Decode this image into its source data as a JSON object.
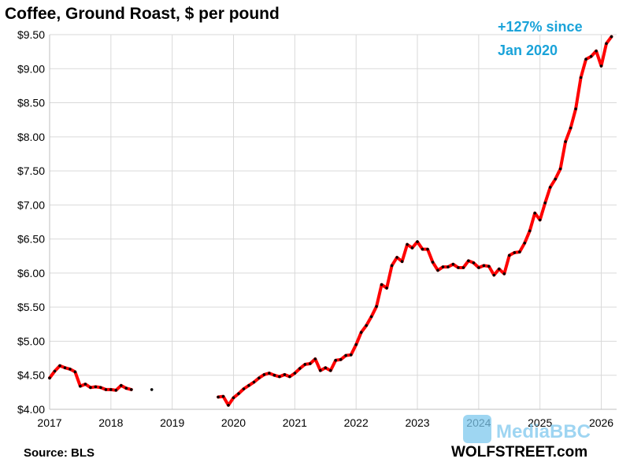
{
  "chart_data": {
    "type": "line",
    "title": "Coffee, Ground Roast, $ per pound",
    "xlabel": "",
    "ylabel": "",
    "xlim": [
      2017,
      2026.25
    ],
    "ylim": [
      4.0,
      9.5
    ],
    "x_ticks": [
      2017,
      2018,
      2019,
      2020,
      2021,
      2022,
      2023,
      2024,
      2025,
      2026
    ],
    "x_tick_labels": [
      "2017",
      "2018",
      "2019",
      "2020",
      "2021",
      "2022",
      "2023",
      "2024",
      "2025",
      "2026"
    ],
    "y_ticks": [
      4.0,
      4.5,
      5.0,
      5.5,
      6.0,
      6.5,
      7.0,
      7.5,
      8.0,
      8.5,
      9.0,
      9.5
    ],
    "y_tick_labels": [
      "$4.00",
      "$4.50",
      "$5.00",
      "$5.50",
      "$6.00",
      "$6.50",
      "$7.00",
      "$7.50",
      "$8.00",
      "$8.50",
      "$9.00",
      "$9.50"
    ],
    "grid": true,
    "line_color": "#ff0000",
    "marker_color": "#000000",
    "annotation": {
      "line1": "+127% since",
      "line2": "Jan 2020",
      "color": "#1aa3d9"
    },
    "source": "Source: BLS",
    "brand": "WOLFSTREET.com",
    "watermark": "MediaBBC",
    "segments": [
      [
        [
          "2017-01",
          4.46
        ],
        [
          "2017-02",
          4.56
        ],
        [
          "2017-03",
          4.64
        ],
        [
          "2017-04",
          4.61
        ],
        [
          "2017-05",
          4.59
        ],
        [
          "2017-06",
          4.55
        ],
        [
          "2017-07",
          4.34
        ],
        [
          "2017-08",
          4.37
        ],
        [
          "2017-09",
          4.32
        ],
        [
          "2017-10",
          4.33
        ],
        [
          "2017-11",
          4.32
        ],
        [
          "2017-12",
          4.29
        ],
        [
          "2018-01",
          4.29
        ],
        [
          "2018-02",
          4.28
        ],
        [
          "2018-03",
          4.35
        ],
        [
          "2018-04",
          4.31
        ],
        [
          "2018-05",
          4.29
        ]
      ],
      [
        [
          "2018-09",
          4.29
        ]
      ],
      [
        [
          "2019-10",
          4.18
        ],
        [
          "2019-11",
          4.19
        ],
        [
          "2019-12",
          4.06
        ],
        [
          "2020-01",
          4.17
        ],
        [
          "2020-02",
          4.23
        ],
        [
          "2020-03",
          4.3
        ],
        [
          "2020-04",
          4.35
        ],
        [
          "2020-05",
          4.4
        ],
        [
          "2020-06",
          4.46
        ],
        [
          "2020-07",
          4.51
        ],
        [
          "2020-08",
          4.53
        ],
        [
          "2020-09",
          4.5
        ],
        [
          "2020-10",
          4.48
        ],
        [
          "2020-11",
          4.51
        ],
        [
          "2020-12",
          4.48
        ],
        [
          "2021-01",
          4.53
        ],
        [
          "2021-02",
          4.6
        ],
        [
          "2021-03",
          4.66
        ],
        [
          "2021-04",
          4.67
        ],
        [
          "2021-05",
          4.74
        ],
        [
          "2021-06",
          4.57
        ],
        [
          "2021-07",
          4.61
        ],
        [
          "2021-08",
          4.57
        ],
        [
          "2021-09",
          4.72
        ],
        [
          "2021-10",
          4.73
        ],
        [
          "2021-11",
          4.79
        ],
        [
          "2021-12",
          4.8
        ],
        [
          "2022-01",
          4.95
        ],
        [
          "2022-02",
          5.13
        ],
        [
          "2022-03",
          5.23
        ],
        [
          "2022-04",
          5.36
        ],
        [
          "2022-05",
          5.51
        ],
        [
          "2022-06",
          5.83
        ],
        [
          "2022-07",
          5.78
        ],
        [
          "2022-08",
          6.11
        ],
        [
          "2022-09",
          6.23
        ],
        [
          "2022-10",
          6.17
        ],
        [
          "2022-11",
          6.42
        ],
        [
          "2022-12",
          6.37
        ],
        [
          "2023-01",
          6.46
        ],
        [
          "2023-02",
          6.35
        ],
        [
          "2023-03",
          6.35
        ],
        [
          "2023-04",
          6.16
        ],
        [
          "2023-05",
          6.04
        ],
        [
          "2023-06",
          6.09
        ],
        [
          "2023-07",
          6.09
        ],
        [
          "2023-08",
          6.13
        ],
        [
          "2023-09",
          6.08
        ],
        [
          "2023-10",
          6.08
        ],
        [
          "2023-11",
          6.18
        ],
        [
          "2023-12",
          6.15
        ],
        [
          "2024-01",
          6.08
        ],
        [
          "2024-02",
          6.11
        ],
        [
          "2024-03",
          6.1
        ],
        [
          "2024-04",
          5.97
        ],
        [
          "2024-05",
          6.06
        ],
        [
          "2024-06",
          5.99
        ],
        [
          "2024-07",
          6.26
        ],
        [
          "2024-08",
          6.3
        ],
        [
          "2024-09",
          6.31
        ],
        [
          "2024-10",
          6.44
        ],
        [
          "2024-11",
          6.62
        ],
        [
          "2024-12",
          6.88
        ],
        [
          "2025-01",
          6.78
        ],
        [
          "2025-02",
          7.03
        ],
        [
          "2025-03",
          7.26
        ],
        [
          "2025-04",
          7.38
        ],
        [
          "2025-05",
          7.53
        ],
        [
          "2025-06",
          7.93
        ],
        [
          "2025-07",
          8.13
        ],
        [
          "2025-08",
          8.41
        ],
        [
          "2025-09",
          8.87
        ],
        [
          "2025-10",
          9.14
        ],
        [
          "2025-11",
          9.18
        ],
        [
          "2025-12",
          9.26
        ],
        [
          "2026-01",
          9.04
        ],
        [
          "2026-02",
          9.37
        ],
        [
          "2026-03",
          9.47
        ]
      ]
    ]
  }
}
